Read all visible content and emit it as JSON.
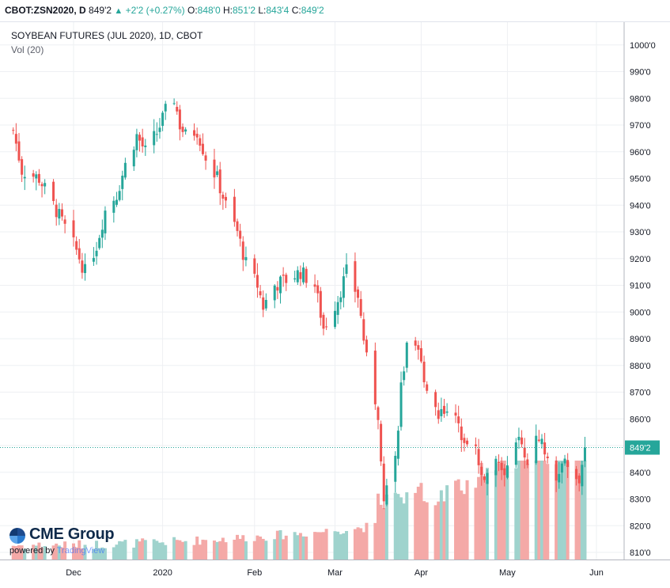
{
  "header": {
    "symbol": "CBOT:ZSN2020, D",
    "last": "849'2",
    "change": "+2'2 (+0.27%)",
    "open_label": "O:",
    "open": "848'0",
    "high_label": "H:",
    "high": "851'2",
    "low_label": "L:",
    "low": "843'4",
    "close_label": "C:",
    "close": "849'2"
  },
  "logo": {
    "brand": "CME Group",
    "powered": "powered by",
    "tv": "TradingView",
    "icon": "globe-icon"
  },
  "colors": {
    "up": "#26a69a",
    "down": "#ef5350",
    "up_vol": "#9fd3cd",
    "down_vol": "#f4a9a7",
    "grid": "#eef0f3",
    "last_line": "#26a69a"
  },
  "chart_data": {
    "type": "candlestick",
    "title": "SOYBEAN FUTURES (JUL 2020), 1D, CBOT",
    "subtitle": "Vol (20)",
    "y_range": [
      801,
      1003
    ],
    "y_ticks": [
      "1000'0",
      "990'0",
      "980'0",
      "970'0",
      "960'0",
      "950'0",
      "940'0",
      "930'0",
      "920'0",
      "910'0",
      "900'0",
      "890'0",
      "880'0",
      "870'0",
      "860'0",
      "850'0",
      "840'0",
      "830'0",
      "820'0",
      "810'0"
    ],
    "y_tick_values": [
      1000,
      990,
      980,
      970,
      960,
      950,
      940,
      930,
      920,
      910,
      900,
      890,
      880,
      870,
      860,
      850,
      840,
      830,
      820,
      810
    ],
    "x_ticks": [
      {
        "label": "Dec",
        "date": "2019-12-02"
      },
      {
        "label": "2020",
        "date": "2020-01-02"
      },
      {
        "label": "Feb",
        "date": "2020-02-03"
      },
      {
        "label": "Mar",
        "date": "2020-03-02"
      },
      {
        "label": "Apr",
        "date": "2020-04-01"
      },
      {
        "label": "May",
        "date": "2020-05-01"
      },
      {
        "label": "Jun",
        "date": "2020-06-01"
      }
    ],
    "last_price_label": "849'2",
    "last_price": 849.25,
    "start_date": "2019-11-11",
    "end_date": "2020-05-28",
    "key_closes": [
      [
        "2019-11-11",
        968
      ],
      [
        "2019-11-14",
        953
      ],
      [
        "2019-11-20",
        950
      ],
      [
        "2019-11-26",
        938
      ],
      [
        "2019-12-03",
        923
      ],
      [
        "2019-12-06",
        915
      ],
      [
        "2019-12-10",
        925
      ],
      [
        "2019-12-13",
        938
      ],
      [
        "2019-12-17",
        944
      ],
      [
        "2019-12-20",
        955
      ],
      [
        "2019-12-24",
        966
      ],
      [
        "2019-12-27",
        960
      ],
      [
        "2019-12-31",
        967
      ],
      [
        "2020-01-03",
        975
      ],
      [
        "2020-01-06",
        980
      ],
      [
        "2020-01-08",
        970
      ],
      [
        "2020-01-10",
        966
      ],
      [
        "2020-01-14",
        968
      ],
      [
        "2020-01-17",
        958
      ],
      [
        "2020-01-21",
        950
      ],
      [
        "2020-01-24",
        940
      ],
      [
        "2020-01-28",
        930
      ],
      [
        "2020-01-31",
        918
      ],
      [
        "2020-02-04",
        910
      ],
      [
        "2020-02-06",
        902
      ],
      [
        "2020-02-10",
        910
      ],
      [
        "2020-02-14",
        912
      ],
      [
        "2020-02-19",
        915
      ],
      [
        "2020-02-24",
        910
      ],
      [
        "2020-02-27",
        894
      ],
      [
        "2020-03-03",
        905
      ],
      [
        "2020-03-06",
        915
      ],
      [
        "2020-03-10",
        906
      ],
      [
        "2020-03-13",
        882
      ],
      [
        "2020-03-17",
        862
      ],
      [
        "2020-03-19",
        832
      ],
      [
        "2020-03-23",
        845
      ],
      [
        "2020-03-25",
        872
      ],
      [
        "2020-03-27",
        886
      ],
      [
        "2020-03-31",
        884
      ],
      [
        "2020-04-03",
        872
      ],
      [
        "2020-04-07",
        862
      ],
      [
        "2020-04-10",
        865
      ],
      [
        "2020-04-15",
        855
      ],
      [
        "2020-04-20",
        848
      ],
      [
        "2020-04-23",
        838
      ],
      [
        "2020-04-28",
        844
      ],
      [
        "2020-05-01",
        840
      ],
      [
        "2020-05-05",
        852
      ],
      [
        "2020-05-08",
        842
      ],
      [
        "2020-05-12",
        854
      ],
      [
        "2020-05-15",
        845
      ],
      [
        "2020-05-19",
        838
      ],
      [
        "2020-05-21",
        846
      ],
      [
        "2020-05-26",
        835
      ],
      [
        "2020-05-28",
        849.25
      ]
    ],
    "volume_axis_note": "relative volume, shown as overlay bars at bottom"
  }
}
